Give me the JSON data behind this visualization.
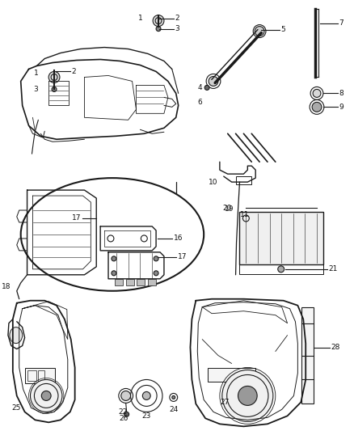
{
  "bg_color": "#ffffff",
  "line_color": "#1a1a1a",
  "label_color": "#111111",
  "label_fontsize": 6.5,
  "fig_width": 4.38,
  "fig_height": 5.33,
  "dpi": 100
}
